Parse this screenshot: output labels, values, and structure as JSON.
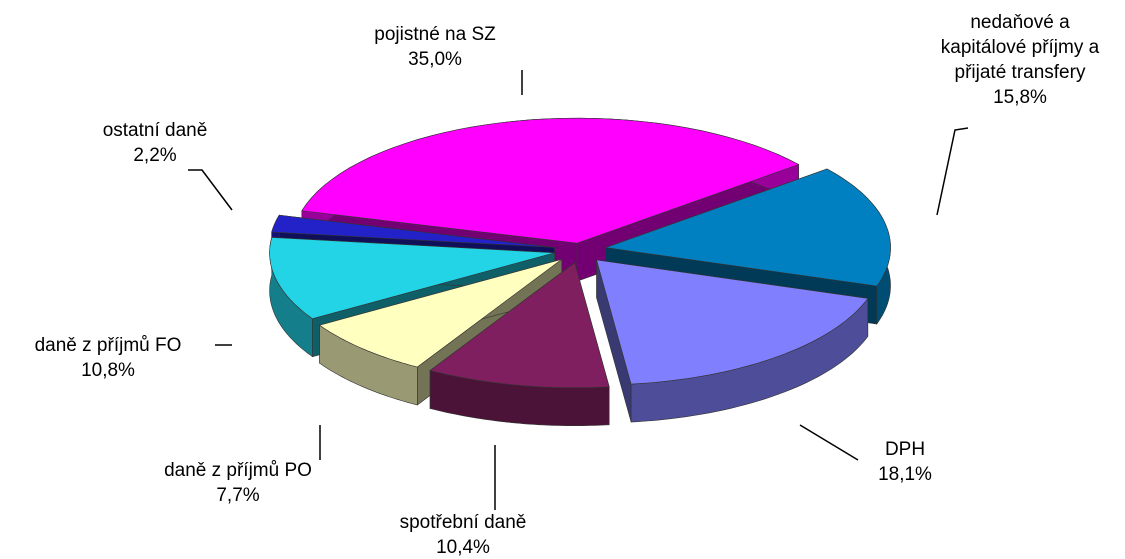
{
  "chart_data": {
    "type": "pie",
    "categories": [
      "pojistné na SZ",
      "nedaňové a kapitálové příjmy a přijaté transfery",
      "DPH",
      "spotřební daně",
      "daně z příjmů PO",
      "daně z příjmů FO",
      "ostatní daně"
    ],
    "values": [
      35.0,
      15.8,
      18.1,
      10.4,
      7.7,
      10.8,
      2.2
    ],
    "value_labels": [
      "35,0%",
      "15,8%",
      "18,1%",
      "10,4%",
      "7,7%",
      "10,8%",
      "2,2%"
    ],
    "colors": [
      "#ff00ff",
      "#0080c0",
      "#8080ff",
      "#7f1f5f",
      "#ffffc0",
      "#22d4e6",
      "#2222c8"
    ]
  }
}
